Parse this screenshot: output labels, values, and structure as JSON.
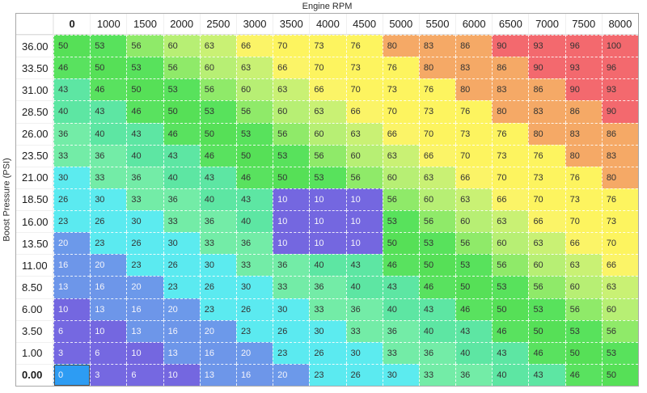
{
  "x_axis_title": "Engine RPM",
  "y_axis_label": "Boost Pressure (PSI)",
  "chart_data": {
    "type": "heatmap",
    "xlabel": "Engine RPM",
    "ylabel": "Boost Pressure (PSI)",
    "x": [
      "0",
      "1000",
      "1500",
      "2000",
      "2500",
      "3000",
      "3500",
      "4000",
      "4500",
      "5000",
      "5500",
      "6000",
      "6500",
      "7000",
      "7500",
      "8000"
    ],
    "y": [
      "36.00",
      "33.50",
      "31.00",
      "28.50",
      "26.00",
      "23.50",
      "21.00",
      "18.50",
      "16.00",
      "13.50",
      "11.00",
      "8.50",
      "6.00",
      "3.50",
      "1.00",
      "0.00"
    ],
    "values": [
      [
        50,
        53,
        56,
        60,
        63,
        66,
        70,
        73,
        76,
        80,
        83,
        86,
        90,
        93,
        96,
        100
      ],
      [
        46,
        50,
        53,
        56,
        60,
        63,
        66,
        70,
        73,
        76,
        80,
        83,
        86,
        90,
        93,
        96
      ],
      [
        43,
        46,
        50,
        53,
        56,
        60,
        63,
        66,
        70,
        73,
        76,
        80,
        83,
        86,
        90,
        93
      ],
      [
        40,
        43,
        46,
        50,
        53,
        56,
        60,
        63,
        66,
        70,
        73,
        76,
        80,
        83,
        86,
        90
      ],
      [
        36,
        40,
        43,
        46,
        50,
        53,
        56,
        60,
        63,
        66,
        70,
        73,
        76,
        80,
        83,
        86
      ],
      [
        33,
        36,
        40,
        43,
        46,
        50,
        53,
        56,
        60,
        63,
        66,
        70,
        73,
        76,
        80,
        83
      ],
      [
        30,
        33,
        36,
        40,
        43,
        46,
        50,
        53,
        56,
        60,
        63,
        66,
        70,
        73,
        76,
        80
      ],
      [
        26,
        30,
        33,
        36,
        40,
        43,
        10,
        10,
        10,
        56,
        60,
        63,
        66,
        70,
        73,
        76
      ],
      [
        23,
        26,
        30,
        33,
        36,
        40,
        10,
        10,
        10,
        53,
        56,
        60,
        63,
        66,
        70,
        73
      ],
      [
        20,
        23,
        26,
        30,
        33,
        36,
        10,
        10,
        10,
        50,
        53,
        56,
        60,
        63,
        66,
        70
      ],
      [
        16,
        20,
        23,
        26,
        30,
        33,
        36,
        40,
        43,
        46,
        50,
        53,
        56,
        60,
        63,
        66
      ],
      [
        13,
        16,
        20,
        23,
        26,
        30,
        33,
        36,
        40,
        43,
        46,
        50,
        53,
        56,
        60,
        63
      ],
      [
        10,
        13,
        16,
        20,
        23,
        26,
        30,
        33,
        36,
        40,
        43,
        46,
        50,
        53,
        56,
        60
      ],
      [
        6,
        10,
        13,
        16,
        20,
        23,
        26,
        30,
        33,
        36,
        40,
        43,
        46,
        50,
        53,
        56
      ],
      [
        3,
        6,
        10,
        13,
        16,
        20,
        23,
        26,
        30,
        33,
        36,
        40,
        43,
        46,
        50,
        53
      ],
      [
        0,
        3,
        6,
        10,
        13,
        16,
        20,
        23,
        26,
        30,
        33,
        36,
        40,
        43,
        46,
        50
      ]
    ]
  },
  "table": {
    "bold_column_index": 0,
    "bold_row_index": 15,
    "selected_cell": {
      "row_index": 15,
      "col_index": 0,
      "row_header": "0.00",
      "column_header": "0"
    }
  },
  "colors": {
    "selection_bg": "#2D9CF3",
    "selection_border": "#4D4D4D",
    "light_text": "#F4F4FB",
    "dark_text": "#333333",
    "light_text_max_value": 20,
    "value_colors": {
      "0": "#7568E1",
      "3": "#7568E1",
      "6": "#7568E1",
      "10": "#7467E0",
      "13": "#6D96E9",
      "16": "#6D96E9",
      "20": "#6C99EA",
      "23": "#5BEAF0",
      "26": "#5BEAF0",
      "30": "#5CEBEF",
      "33": "#73ECA7",
      "36": "#73ECA7",
      "40": "#5DE6A3",
      "43": "#5DE6A3",
      "46": "#59E25F",
      "50": "#56E057",
      "53": "#58E25C",
      "56": "#8FEA69",
      "60": "#B7EF74",
      "63": "#C9F174",
      "66": "#FBF467",
      "70": "#FDF45F",
      "73": "#FDF45F",
      "76": "#FDF45F",
      "80": "#F5A966",
      "83": "#F5A966",
      "86": "#F5A966",
      "90": "#F3696E",
      "93": "#F3696E",
      "96": "#F3696E",
      "100": "#F3696E"
    }
  }
}
